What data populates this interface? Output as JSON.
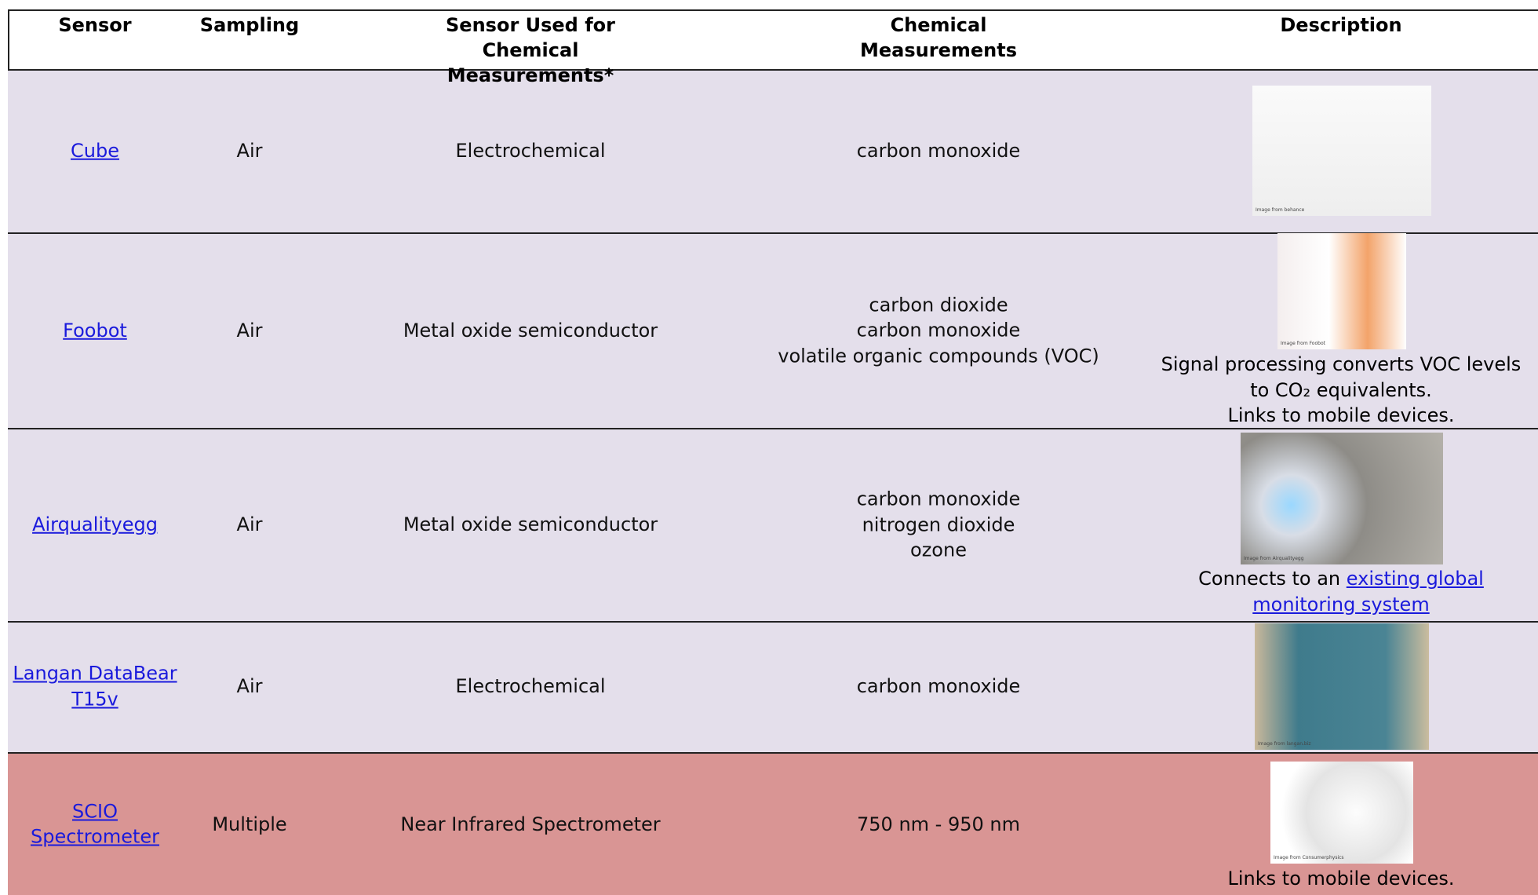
{
  "header": {
    "columns": [
      "Sensor",
      "Sampling",
      "Sensor Used for Chemical Measurements*",
      "Chemical Measurements",
      "Description"
    ]
  },
  "table": {
    "rows": [
      {
        "sensor": "Cube",
        "sampling": "Air",
        "sensor_type": "Electrochemical",
        "chemicals": [
          "carbon monoxide"
        ],
        "image_caption": "Image from behance",
        "description": []
      },
      {
        "sensor": "Foobot",
        "sampling": "Air",
        "sensor_type": "Metal oxide semiconductor",
        "chemicals": [
          "carbon dioxide",
          "carbon monoxide",
          "volatile organic compounds (VOC)"
        ],
        "image_caption": "Image from Foobot",
        "description": [
          "Signal processing converts VOC levels",
          "to CO₂ equivalents.",
          "Links to mobile devices."
        ]
      },
      {
        "sensor": "Airqualityegg",
        "sampling": "Air",
        "sensor_type": "Metal oxide semiconductor",
        "chemicals": [
          "carbon monoxide",
          "nitrogen dioxide",
          "ozone"
        ],
        "image_caption": "Image from Airqualityegg",
        "description_text": "Connects to an",
        "description_link": "existing global monitoring system"
      },
      {
        "sensor": "Langan DataBear T15v",
        "sampling": "Air",
        "sensor_type": "Electrochemical",
        "chemicals": [
          "carbon monoxide"
        ],
        "image_caption": "Image from langan.biz",
        "description": []
      },
      {
        "sensor": "SCIO Spectrometer",
        "sampling": "Multiple",
        "sensor_type": "Near Infrared Spectrometer",
        "chemicals": [
          "750 nm - 950 nm"
        ],
        "image_caption": "Image from Consumerphysics",
        "description": [
          "Links to mobile devices."
        ]
      }
    ]
  }
}
